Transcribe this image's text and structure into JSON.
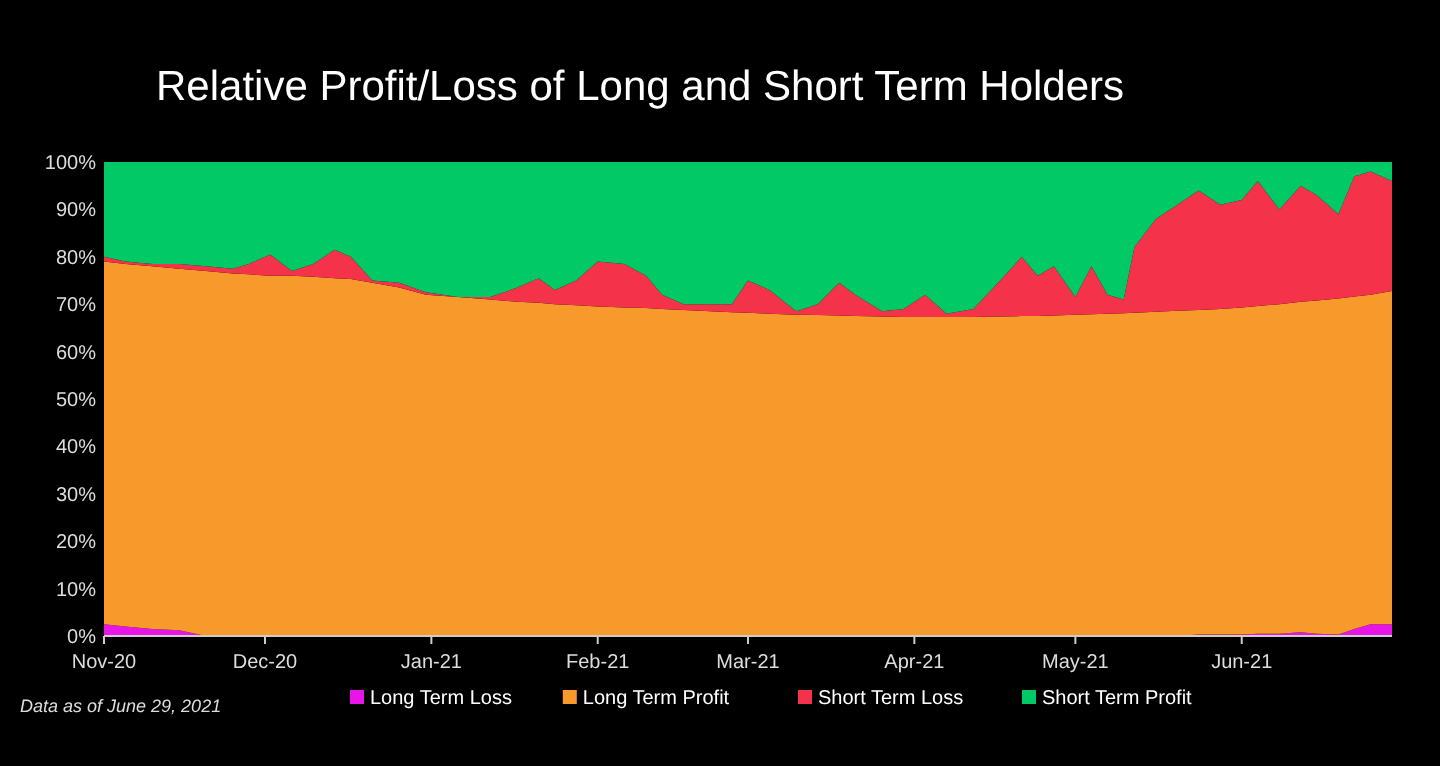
{
  "chart_data": {
    "type": "area",
    "title": "Relative Profit/Loss of Long and Short Term Holders",
    "stacked": true,
    "legend": "bottom",
    "annotations": [
      "Data as of June 29, 2021"
    ],
    "x": [
      "2020-11-01",
      "2020-11-05",
      "2020-11-10",
      "2020-11-15",
      "2020-11-20",
      "2020-11-25",
      "2020-11-28",
      "2020-12-02",
      "2020-12-06",
      "2020-12-10",
      "2020-12-14",
      "2020-12-17",
      "2020-12-21",
      "2020-12-26",
      "2020-12-31",
      "2021-01-06",
      "2021-01-12",
      "2021-01-17",
      "2021-01-21",
      "2021-01-24",
      "2021-01-28",
      "2021-02-01",
      "2021-02-06",
      "2021-02-10",
      "2021-02-13",
      "2021-02-17",
      "2021-02-22",
      "2021-02-26",
      "2021-03-01",
      "2021-03-05",
      "2021-03-10",
      "2021-03-14",
      "2021-03-18",
      "2021-03-21",
      "2021-03-26",
      "2021-03-30",
      "2021-04-03",
      "2021-04-07",
      "2021-04-12",
      "2021-04-17",
      "2021-04-21",
      "2021-04-24",
      "2021-04-27",
      "2021-05-01",
      "2021-05-04",
      "2021-05-07",
      "2021-05-10",
      "2021-05-12",
      "2021-05-16",
      "2021-05-20",
      "2021-05-24",
      "2021-05-28",
      "2021-06-01",
      "2021-06-04",
      "2021-06-08",
      "2021-06-12",
      "2021-06-15",
      "2021-06-19",
      "2021-06-22",
      "2021-06-25",
      "2021-06-29"
    ],
    "series": [
      {
        "name": "Long Term Loss",
        "color": "#e815e8",
        "values": [
          2.5,
          2,
          1.5,
          1.2,
          0,
          0,
          0,
          0,
          0,
          0,
          0,
          0,
          0,
          0,
          0,
          0,
          0,
          0,
          0,
          0,
          0,
          0,
          0,
          0,
          0,
          0,
          0,
          0,
          0,
          0,
          0,
          0,
          0,
          0,
          0,
          0,
          0,
          0,
          0,
          0,
          0,
          0,
          0,
          0,
          0,
          0,
          0,
          0,
          0,
          0,
          0.3,
          0.3,
          0.3,
          0.5,
          0.5,
          0.8,
          0.5,
          0.3,
          1.5,
          2.5,
          2.5
        ]
      },
      {
        "name": "Long Term Profit",
        "color": "#f7992b",
        "values": [
          76.5,
          76.5,
          76.5,
          76.3,
          77,
          76.5,
          76.3,
          76,
          76,
          75.8,
          75.5,
          75.3,
          74.5,
          73.5,
          72,
          71.5,
          71,
          70.5,
          70.3,
          70,
          69.8,
          69.5,
          69.3,
          69.2,
          69,
          68.8,
          68.5,
          68.3,
          68.2,
          68,
          67.8,
          67.7,
          67.6,
          67.5,
          67.4,
          67.3,
          67.3,
          67.3,
          67.3,
          67.4,
          67.5,
          67.5,
          67.6,
          67.8,
          67.9,
          68,
          68.1,
          68.2,
          68.4,
          68.6,
          68.5,
          68.7,
          69,
          69.1,
          69.5,
          69.7,
          70.3,
          70.9,
          70.1,
          69.5,
          70.3
        ]
      },
      {
        "name": "Short Term Loss",
        "color": "#f4324a",
        "values": [
          1,
          0.5,
          0.5,
          1,
          1,
          1,
          2.2,
          4.5,
          1,
          2.7,
          6,
          4.7,
          0.5,
          1,
          0.5,
          0,
          0.5,
          3,
          5.2,
          3,
          5.2,
          9.5,
          9.2,
          6.8,
          3,
          1.2,
          1.5,
          1.7,
          6.8,
          5,
          0.7,
          2.3,
          6.9,
          4.5,
          1.1,
          1.7,
          4.7,
          0.7,
          1.7,
          7.6,
          12.5,
          8.5,
          10.4,
          3.7,
          10.1,
          4,
          2.9,
          13.8,
          19.6,
          22.4,
          25.2,
          22,
          22.7,
          26.4,
          20,
          24.5,
          22.2,
          17.8,
          25.4,
          26,
          23.2
        ]
      },
      {
        "name": "Short Term Profit",
        "color": "#00c965",
        "values": [
          20,
          21,
          21.5,
          21.5,
          22,
          22.5,
          21.5,
          19.5,
          23,
          21.5,
          18.5,
          20,
          25,
          25.5,
          27.5,
          28.5,
          28.5,
          26.5,
          24.5,
          27,
          25,
          21,
          21.5,
          24,
          28,
          30,
          30,
          30,
          25,
          27,
          31.5,
          30,
          25.5,
          28,
          31.5,
          31,
          28,
          32,
          31,
          25,
          20,
          24,
          22,
          28.5,
          22,
          28,
          29,
          18,
          12,
          9,
          6,
          9,
          8,
          4,
          10,
          5,
          7,
          11,
          3,
          2,
          4
        ]
      }
    ],
    "xlim": [
      "2020-11-01",
      "2021-06-29"
    ],
    "xticks": [
      {
        "value": "2020-11-01",
        "label": "Nov-20"
      },
      {
        "value": "2020-12-01",
        "label": "Dec-20"
      },
      {
        "value": "2021-01-01",
        "label": "Jan-21"
      },
      {
        "value": "2021-02-01",
        "label": "Feb-21"
      },
      {
        "value": "2021-03-01",
        "label": "Mar-21"
      },
      {
        "value": "2021-04-01",
        "label": "Apr-21"
      },
      {
        "value": "2021-05-01",
        "label": "May-21"
      },
      {
        "value": "2021-06-01",
        "label": "Jun-21"
      }
    ],
    "ylim": [
      0,
      100
    ],
    "yticks": [
      {
        "value": 0,
        "label": "0%"
      },
      {
        "value": 10,
        "label": "10%"
      },
      {
        "value": 20,
        "label": "20%"
      },
      {
        "value": 30,
        "label": "30%"
      },
      {
        "value": 40,
        "label": "40%"
      },
      {
        "value": 50,
        "label": "50%"
      },
      {
        "value": 60,
        "label": "60%"
      },
      {
        "value": 70,
        "label": "70%"
      },
      {
        "value": 80,
        "label": "80%"
      },
      {
        "value": 90,
        "label": "90%"
      },
      {
        "value": 100,
        "label": "100%"
      }
    ]
  }
}
